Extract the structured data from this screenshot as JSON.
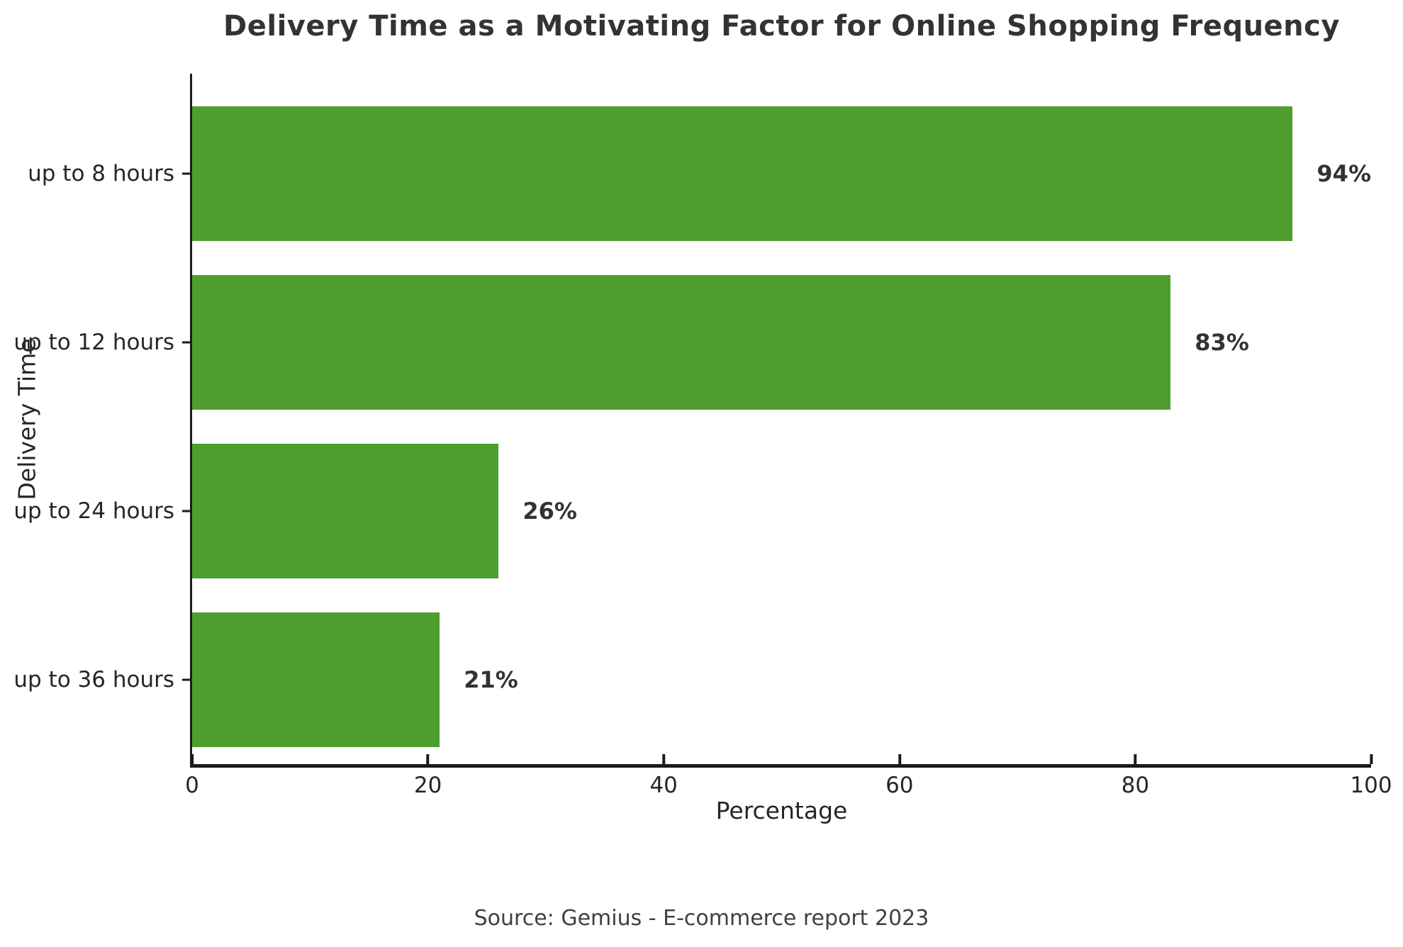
{
  "chart_data": {
    "type": "bar",
    "orientation": "horizontal",
    "title": "Delivery Time as a Motivating Factor for Online Shopping Frequency",
    "categories": [
      "up to 8 hours",
      "up to 12 hours",
      "up to 24 hours",
      "up to 36 hours"
    ],
    "values": [
      94,
      83,
      26,
      21
    ],
    "value_labels": [
      "94%",
      "83%",
      "26%",
      "21%"
    ],
    "xlabel": "Percentage",
    "ylabel": "Delivery Time",
    "xlim": [
      0,
      100
    ],
    "xticks": [
      0,
      20,
      40,
      60,
      80,
      100
    ],
    "grid": false,
    "legend": null,
    "bar_height_fraction": 0.8
  },
  "colors": {
    "bar": "#4d9e2f",
    "axis": "#1a1a1a",
    "title_text": "#333333",
    "label_text": "#262626",
    "value_text": "#333333",
    "source_text": "#404040"
  },
  "footer": {
    "source": "Source: Gemius - E-commerce report 2023"
  }
}
